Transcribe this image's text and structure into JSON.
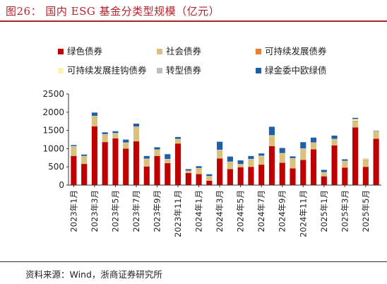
{
  "figure": {
    "title": "图26： 国内 ESG 基金分类型规模（亿元）",
    "source": "资料来源：Wind，浙商证券研究所"
  },
  "colors": {
    "title_red": "#b4232a",
    "axis": "#333333"
  },
  "chart_data": {
    "type": "bar",
    "stacked": true,
    "title": "",
    "xlabel": "",
    "ylabel": "",
    "ylim": [
      0,
      2500
    ],
    "yticks": [
      0,
      500,
      1000,
      1500,
      2000,
      2500
    ],
    "grid": false,
    "legend_position": "top",
    "x_tick_labels": [
      "2023年1月",
      "2023年3月",
      "2023年5月",
      "2023年7月",
      "2023年9月",
      "2023年11月",
      "2024年1月",
      "2024年3月",
      "2024年5月",
      "2024年7月",
      "2024年9月",
      "2024年11月",
      "2025年1月",
      "2025年3月",
      "2025年5月"
    ],
    "categories": [
      "2023年1月",
      "2023年2月",
      "2023年3月",
      "2023年4月",
      "2023年5月",
      "2023年6月",
      "2023年7月",
      "2023年8月",
      "2023年9月",
      "2023年10月",
      "2023年11月",
      "2023年12月",
      "2024年1月",
      "2024年2月",
      "2024年3月",
      "2024年4月",
      "2024年5月",
      "2024年6月",
      "2024年7月",
      "2024年8月",
      "2024年9月",
      "2024年10月",
      "2024年11月",
      "2024年12月",
      "2025年1月",
      "2025年2月",
      "2025年3月",
      "2025年4月",
      "2025年5月",
      "2025年6月"
    ],
    "series": [
      {
        "name": "绿色债券",
        "color": "#c00000",
        "values": [
          800,
          580,
          1610,
          1180,
          1280,
          1000,
          1200,
          510,
          800,
          600,
          1140,
          330,
          300,
          120,
          730,
          440,
          490,
          500,
          560,
          1070,
          610,
          460,
          690,
          980,
          240,
          1090,
          480,
          1580,
          500,
          1270
        ]
      },
      {
        "name": "社会债券",
        "color": "#d9c27e",
        "values": [
          250,
          200,
          270,
          200,
          130,
          150,
          380,
          200,
          160,
          100,
          110,
          50,
          150,
          110,
          220,
          180,
          70,
          200,
          230,
          280,
          250,
          260,
          300,
          170,
          100,
          160,
          170,
          180,
          200,
          190
        ]
      },
      {
        "name": "可持续发展债券",
        "color": "#ed7d31",
        "values": [
          5,
          3,
          5,
          3,
          3,
          3,
          5,
          3,
          3,
          3,
          5,
          3,
          3,
          3,
          5,
          3,
          3,
          3,
          3,
          5,
          3,
          3,
          3,
          3,
          3,
          3,
          3,
          5,
          3,
          3
        ]
      },
      {
        "name": "可持续发展挂钩债券",
        "color": "#fff2b3",
        "values": [
          5,
          5,
          5,
          5,
          5,
          5,
          10,
          5,
          5,
          5,
          5,
          5,
          5,
          5,
          5,
          10,
          5,
          5,
          5,
          5,
          5,
          5,
          5,
          10,
          5,
          5,
          5,
          40,
          20,
          5
        ]
      },
      {
        "name": "转型债券",
        "color": "#bfbfbf",
        "values": [
          10,
          10,
          10,
          10,
          10,
          10,
          10,
          10,
          10,
          10,
          10,
          10,
          10,
          10,
          10,
          10,
          10,
          10,
          10,
          10,
          10,
          10,
          10,
          10,
          10,
          10,
          10,
          10,
          10,
          10
        ]
      },
      {
        "name": "绿金委中欧绿债",
        "color": "#1f5fa8",
        "values": [
          30,
          40,
          90,
          50,
          50,
          80,
          80,
          70,
          60,
          130,
          50,
          40,
          50,
          50,
          220,
          140,
          100,
          80,
          60,
          230,
          140,
          50,
          170,
          130,
          60,
          90,
          40,
          30,
          0,
          10
        ]
      }
    ]
  }
}
